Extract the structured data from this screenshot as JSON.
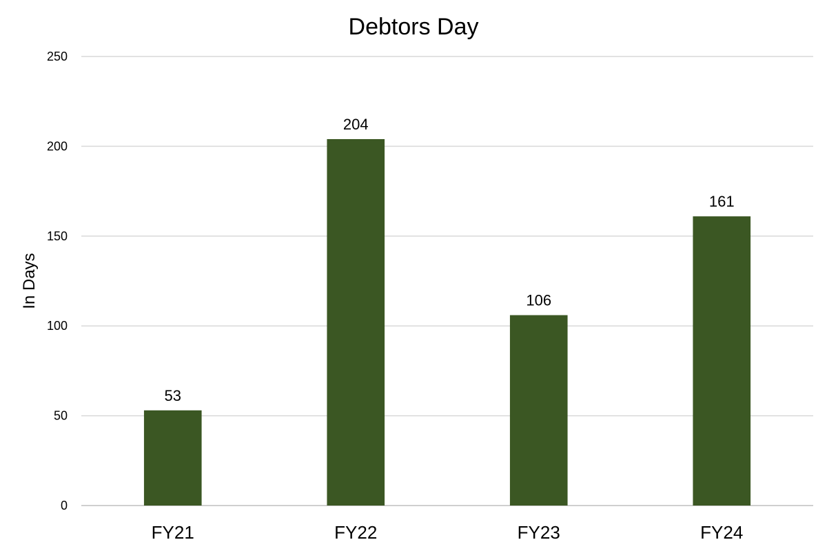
{
  "chart_data": {
    "type": "bar",
    "title": "Debtors Day",
    "xlabel": "",
    "ylabel": "In Days",
    "categories": [
      "FY21",
      "FY22",
      "FY23",
      "FY24"
    ],
    "values": [
      53,
      204,
      106,
      161
    ],
    "data_labels": [
      "53",
      "204",
      "106",
      "161"
    ],
    "ylim": [
      0,
      250
    ],
    "yticks": [
      0,
      50,
      100,
      150,
      200,
      250
    ],
    "ytick_labels": [
      "0",
      "50",
      "100",
      "150",
      "200",
      "250"
    ],
    "grid": true,
    "legend": "none",
    "bar_color": "#3b5723"
  }
}
